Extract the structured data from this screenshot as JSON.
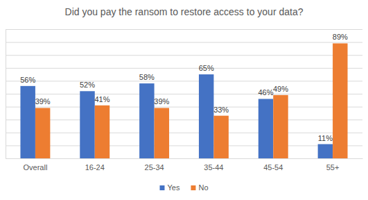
{
  "chart_data": {
    "type": "bar",
    "title": "Did you pay the ransom to restore access to your data?",
    "categories": [
      "Overall",
      "16-24",
      "25-34",
      "35-44",
      "45-54",
      "55+"
    ],
    "series": [
      {
        "name": "Yes",
        "color": "#4472c4",
        "values": [
          56,
          52,
          58,
          65,
          46,
          11
        ],
        "value_labels": [
          "56%",
          "52%",
          "58%",
          "65%",
          "46%",
          "11%"
        ]
      },
      {
        "name": "No",
        "color": "#ed7d31",
        "values": [
          39,
          41,
          39,
          33,
          49,
          89
        ],
        "value_labels": [
          "39%",
          "41%",
          "39%",
          "33%",
          "49%",
          "89%"
        ]
      }
    ],
    "ylim": [
      0,
      100
    ],
    "yticks": [
      0,
      10,
      20,
      30,
      40,
      50,
      60,
      70,
      80,
      90,
      100
    ],
    "grid": true,
    "tick_labels": "x",
    "data_labels": true,
    "legend": "bottom"
  }
}
